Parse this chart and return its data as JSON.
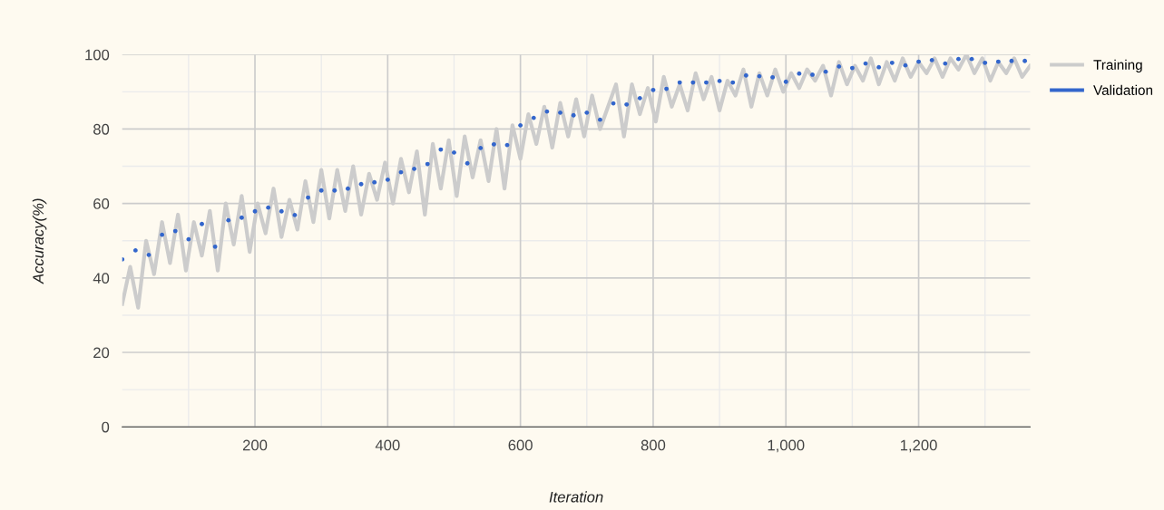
{
  "chart_data": {
    "type": "line",
    "xlabel": "Iteration",
    "ylabel": "Accuracy(%)",
    "xlim": [
      0,
      1368
    ],
    "ylim": [
      0,
      100
    ],
    "xticks": [
      200,
      400,
      600,
      800,
      {
        "value": 1000,
        "label": "1,000"
      },
      {
        "value": 1200,
        "label": "1,200"
      }
    ],
    "yticks": [
      0,
      20,
      40,
      60,
      80,
      100
    ],
    "grid": true,
    "legend": "right",
    "series": [
      {
        "name": "Training",
        "color": "#cccccc",
        "x": [
          0,
          12,
          24,
          36,
          48,
          60,
          72,
          84,
          96,
          108,
          120,
          132,
          144,
          156,
          168,
          180,
          192,
          204,
          216,
          228,
          240,
          252,
          264,
          276,
          288,
          300,
          312,
          324,
          336,
          348,
          360,
          372,
          384,
          396,
          408,
          420,
          432,
          444,
          456,
          468,
          480,
          492,
          504,
          516,
          528,
          540,
          552,
          564,
          576,
          588,
          600,
          612,
          624,
          636,
          648,
          660,
          672,
          684,
          696,
          708,
          720,
          732,
          744,
          756,
          768,
          780,
          792,
          804,
          816,
          828,
          840,
          852,
          864,
          876,
          888,
          900,
          912,
          924,
          936,
          948,
          960,
          972,
          984,
          996,
          1008,
          1020,
          1032,
          1044,
          1056,
          1068,
          1080,
          1092,
          1104,
          1116,
          1128,
          1140,
          1152,
          1164,
          1176,
          1188,
          1200,
          1212,
          1224,
          1236,
          1248,
          1260,
          1272,
          1284,
          1296,
          1308,
          1320,
          1332,
          1344,
          1356,
          1368
        ],
        "values": [
          33,
          43,
          32,
          50,
          41,
          55,
          44,
          57,
          42,
          55,
          46,
          58,
          42,
          60,
          49,
          62,
          47,
          60,
          52,
          64,
          51,
          61,
          53,
          66,
          55,
          69,
          56,
          69,
          58,
          70,
          57,
          68,
          61,
          71,
          60,
          72,
          63,
          74,
          57,
          76,
          64,
          77,
          62,
          78,
          67,
          77,
          66,
          80,
          64,
          81,
          72,
          84,
          76,
          86,
          75,
          87,
          78,
          88,
          78,
          89,
          80,
          86,
          92,
          78,
          92,
          84,
          91,
          82,
          94,
          86,
          92,
          85,
          95,
          88,
          94,
          85,
          93,
          89,
          96,
          86,
          95,
          89,
          96,
          90,
          95,
          91,
          96,
          93,
          97,
          89,
          98,
          92,
          97,
          93,
          99,
          92,
          98,
          93,
          99,
          94,
          98,
          95,
          99,
          94,
          99,
          96,
          100,
          95,
          99,
          93,
          98,
          95,
          99,
          94,
          97
        ]
      },
      {
        "name": "Validation",
        "type": "scatter",
        "marker": "circle",
        "color": "#3366cc",
        "x": [
          0,
          20,
          40,
          60,
          80,
          100,
          120,
          140,
          160,
          180,
          200,
          220,
          240,
          260,
          280,
          300,
          320,
          340,
          360,
          380,
          400,
          420,
          440,
          460,
          480,
          500,
          520,
          540,
          560,
          580,
          600,
          620,
          640,
          660,
          680,
          700,
          720,
          740,
          760,
          780,
          800,
          820,
          840,
          860,
          880,
          900,
          920,
          940,
          960,
          980,
          1000,
          1020,
          1040,
          1060,
          1080,
          1100,
          1120,
          1140,
          1160,
          1180,
          1200,
          1220,
          1240,
          1260,
          1280,
          1300,
          1320,
          1340,
          1360
        ],
        "values": [
          45,
          47.4,
          46.2,
          51.6,
          52.6,
          50.4,
          54.5,
          48.4,
          55.5,
          56.2,
          57.9,
          58.9,
          57.9,
          56.9,
          61.6,
          63.5,
          63.5,
          64,
          65.2,
          65.7,
          66.4,
          68.4,
          69.3,
          70.6,
          74.5,
          73.7,
          70.8,
          74.9,
          75.9,
          75.7,
          81,
          83,
          84.7,
          84.4,
          83.7,
          84.4,
          82.5,
          86.9,
          86.6,
          88.3,
          90.5,
          90.8,
          92.5,
          92.5,
          92.5,
          92.9,
          92.5,
          94.4,
          94.2,
          93.9,
          92.7,
          94.9,
          94.6,
          95.4,
          96.8,
          96.4,
          97.6,
          96.6,
          97.8,
          97.1,
          98.1,
          98.5,
          97.6,
          98.8,
          98.8,
          97.8,
          98.1,
          98.3,
          98.3
        ]
      }
    ]
  }
}
